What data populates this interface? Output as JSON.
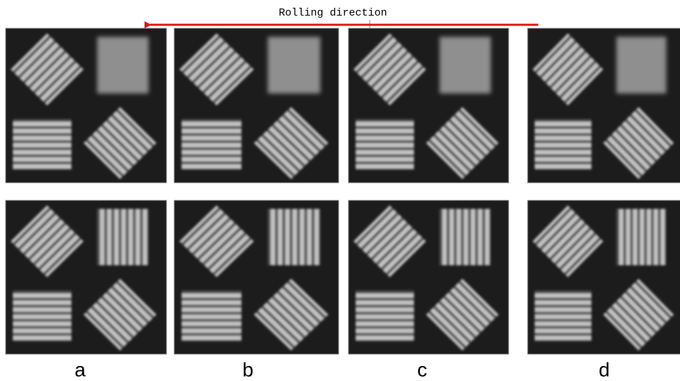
{
  "header": {
    "title": "Rolling direction"
  },
  "panels": {
    "labels": [
      "a",
      "b",
      "c",
      "d"
    ]
  }
}
